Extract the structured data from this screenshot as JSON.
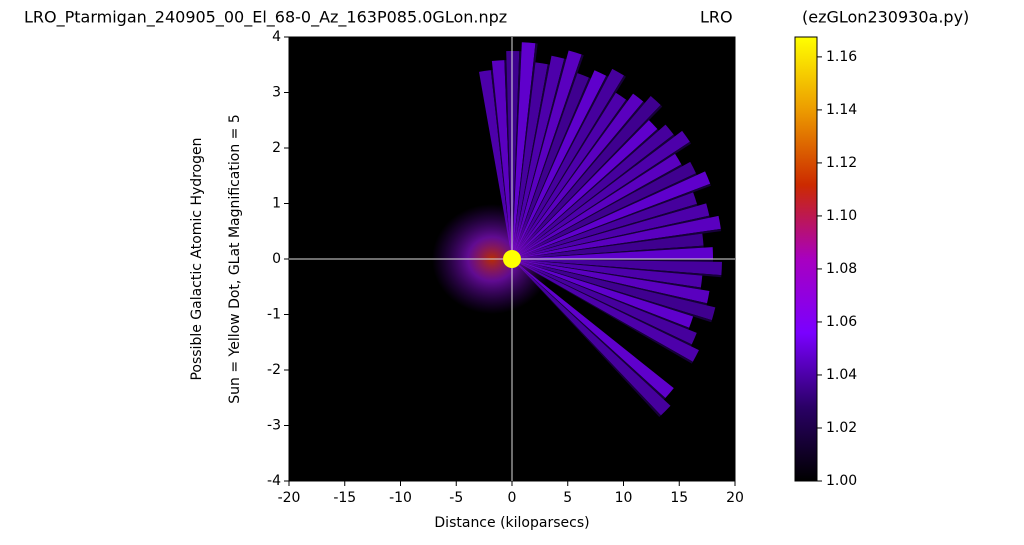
{
  "chart_data": {
    "type": "polar-map",
    "title": "LRO_Ptarmigan_240905_00_El_68-0_Az_163P085.0GLon.npz",
    "subtitle": "LRO",
    "source": "(ezGLon230930a.py)",
    "ylabel": [
      "Possible Galactic Atomic Hydrogen",
      "Sun = Yellow Dot, GLat Magnification = 5"
    ],
    "xlabel": "Distance (kiloparsecs)",
    "xlim": [
      -20,
      20
    ],
    "xticks": [
      -20,
      -15,
      -10,
      -5,
      0,
      5,
      10,
      15,
      20
    ],
    "ylim": [
      -4,
      4
    ],
    "yticks": [
      -4,
      -3,
      -2,
      -1,
      0,
      1,
      2,
      3,
      4
    ],
    "sun": {
      "x": 0,
      "y": 0,
      "color": "#ffff00"
    },
    "colormap": [
      "#000000",
      "#2a0066",
      "#7a00ff",
      "#a800c0",
      "#cc2a00",
      "#ec9a00",
      "#ffff00"
    ],
    "clim": [
      1.0,
      1.1675
    ],
    "cticks": [
      {
        "value": 1.0,
        "label": "1.00"
      },
      {
        "value": 1.02,
        "label": "1.02"
      },
      {
        "value": 1.04,
        "label": "1.04"
      },
      {
        "value": 1.06,
        "label": "1.06"
      },
      {
        "value": 1.08,
        "label": "1.08"
      },
      {
        "value": 1.1,
        "label": "1.10"
      },
      {
        "value": 1.12,
        "label": "1.12"
      },
      {
        "value": 1.14,
        "label": "1.14"
      },
      {
        "value": 1.16,
        "label": "1.16"
      }
    ]
  }
}
